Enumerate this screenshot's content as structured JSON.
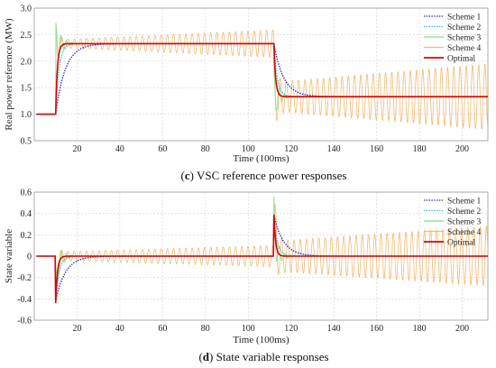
{
  "chart_data": [
    {
      "type": "line",
      "caption_letter": "(c)",
      "caption_text": " VSC reference power responses",
      "xlabel": "Time (100ms)",
      "ylabel": "Real power reference (MW)",
      "xlim": [
        0,
        212
      ],
      "ylim": [
        0.5,
        3.0
      ],
      "xticks": [
        20,
        40,
        60,
        80,
        100,
        120,
        140,
        160,
        180,
        200
      ],
      "yticks": [
        0.5,
        1.0,
        1.5,
        2.0,
        2.5,
        3.0
      ],
      "ytick_labels": [
        "0.5",
        "1.0",
        "1.5",
        "2.0",
        "2.5",
        "3.0"
      ],
      "grid": true,
      "legend_position": "top-right",
      "series": [
        {
          "name": "Scheme 1",
          "color": "#1f1fbf",
          "style": "dotted",
          "kind": "first_order",
          "x0": 1,
          "t1": 10,
          "t2": 112,
          "y0": 1.0,
          "y1": 2.33,
          "y2": 1.33,
          "tau": 4.5
        },
        {
          "name": "Scheme 2",
          "color": "#3cb8e0",
          "style": "dotted",
          "kind": "first_order",
          "x0": 1,
          "t1": 10,
          "t2": 112,
          "y0": 1.0,
          "y1": 2.33,
          "y2": 1.33,
          "tau": 1.6
        },
        {
          "name": "Scheme 3",
          "color": "#7fe07f",
          "style": "solid",
          "kind": "decay_osc",
          "x0": 1,
          "t1": 10,
          "t2": 112,
          "y0": 1.0,
          "y1": 2.33,
          "y2": 1.33,
          "amp": 0.43,
          "tau": 2.5,
          "period": 2.5
        },
        {
          "name": "Scheme 4",
          "color": "#f5b871",
          "style": "solid",
          "kind": "grow_osc",
          "x0": 1,
          "t1": 10,
          "t2": 112,
          "y0": 1.0,
          "y1": 2.33,
          "y2": 1.33,
          "amp0": 0.07,
          "amp1": 0.26,
          "amp_post0": 0.27,
          "amp_post1": 0.62,
          "period": 2.9
        },
        {
          "name": "Optimal",
          "color": "#e00000",
          "style": "solid",
          "kind": "fast_first_order",
          "x0": 1,
          "t1": 10,
          "t2": 112,
          "y0": 1.0,
          "y1": 2.33,
          "y2": 1.33,
          "tau": 0.8
        }
      ]
    },
    {
      "type": "line",
      "caption_letter": "(d)",
      "caption_text": " State variable responses",
      "xlabel": "Time (100ms)",
      "ylabel": "State variable",
      "xlim": [
        0,
        212
      ],
      "ylim": [
        -0.6,
        0.6
      ],
      "xticks": [
        20,
        40,
        60,
        80,
        100,
        120,
        140,
        160,
        180,
        200
      ],
      "yticks": [
        -0.6,
        -0.4,
        -0.2,
        0,
        0.2,
        0.4,
        0.6
      ],
      "ytick_labels": [
        "-0.6",
        "-0.4",
        "-0.2",
        "0",
        "0.2",
        "0.4",
        "0.6"
      ],
      "grid": true,
      "legend_position": "top-right",
      "series": [
        {
          "name": "Scheme 1",
          "color": "#1f1fbf",
          "style": "dotted",
          "kind": "impulse_decay",
          "x0": 1,
          "t1": 10,
          "t2": 112,
          "peak1": -0.42,
          "peak2": 0.38,
          "tau": 4.5
        },
        {
          "name": "Scheme 2",
          "color": "#3cb8e0",
          "style": "dotted",
          "kind": "impulse_decay",
          "x0": 1,
          "t1": 10,
          "t2": 112,
          "peak1": -0.42,
          "peak2": 0.38,
          "tau": 1.6
        },
        {
          "name": "Scheme 3",
          "color": "#7fe07f",
          "style": "solid",
          "kind": "impulse_osc",
          "x0": 1,
          "t1": 10,
          "t2": 112,
          "peak1": -0.4,
          "peak2": 0.36,
          "amp": 0.2,
          "tau": 2.5,
          "period": 2.5
        },
        {
          "name": "Scheme 4",
          "color": "#f5b871",
          "style": "solid",
          "kind": "impulse_grow_osc",
          "x0": 1,
          "t1": 10,
          "t2": 112,
          "peak1": -0.4,
          "peak2": 0.35,
          "amp0": 0.04,
          "amp1": 0.1,
          "amp_post0": 0.14,
          "amp_post1": 0.28,
          "period": 2.9
        },
        {
          "name": "Optimal",
          "color": "#e00000",
          "style": "solid",
          "kind": "impulse_decay",
          "x0": 1,
          "t1": 10,
          "t2": 112,
          "peak1": -0.44,
          "peak2": 0.39,
          "tau": 0.8
        }
      ]
    }
  ]
}
